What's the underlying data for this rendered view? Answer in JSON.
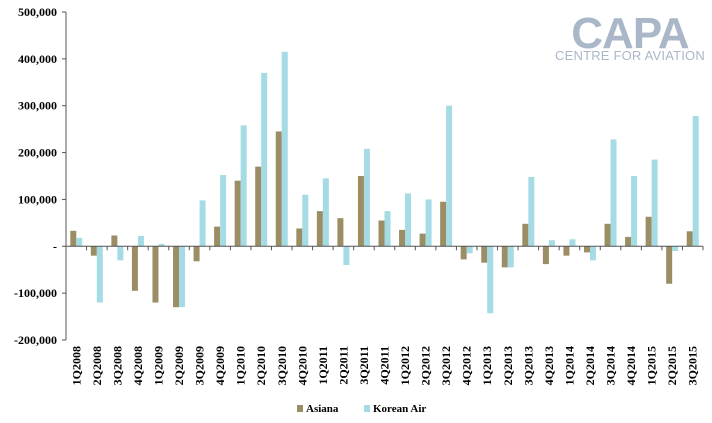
{
  "logo": {
    "main": "CAPA",
    "sub": "CENTRE FOR AVIATION"
  },
  "colors": {
    "asiana": "#9b8d64",
    "korean_air": "#a5dbe4",
    "axis": "#555555",
    "logo": "#aab7c9"
  },
  "chart_data": {
    "type": "bar",
    "title": "",
    "xlabel": "",
    "ylabel": "",
    "ylim": [
      -200000,
      500000
    ],
    "yticks": [
      500000,
      400000,
      300000,
      200000,
      100000,
      0,
      -100000,
      -200000
    ],
    "ytick_labels": [
      "500,000",
      "400,000",
      "300,000",
      "200,000",
      "100,000",
      "-",
      "-100,000",
      "-200,000"
    ],
    "grid": false,
    "legend_position": "bottom",
    "categories": [
      "1Q2008",
      "2Q2008",
      "3Q2008",
      "4Q2008",
      "1Q2009",
      "2Q2009",
      "3Q2009",
      "4Q2009",
      "1Q2010",
      "2Q2010",
      "3Q2010",
      "4Q2010",
      "1Q2011",
      "2Q2011",
      "3Q2011",
      "4Q2011",
      "1Q2012",
      "2Q2012",
      "3Q2012",
      "4Q2012",
      "1Q2013",
      "2Q2013",
      "3Q2013",
      "4Q2013",
      "1Q2014",
      "2Q2014",
      "3Q2014",
      "4Q2014",
      "1Q2015",
      "2Q2015",
      "3Q2015"
    ],
    "series": [
      {
        "name": "Asiana",
        "values": [
          33000,
          -20000,
          23000,
          -95000,
          -120000,
          -130000,
          -32000,
          42000,
          140000,
          170000,
          245000,
          38000,
          75000,
          60000,
          150000,
          55000,
          35000,
          27000,
          95000,
          -28000,
          -35000,
          -45000,
          48000,
          -38000,
          -20000,
          -13000,
          48000,
          20000,
          63000,
          -80000,
          32000
        ]
      },
      {
        "name": "Korean Air",
        "values": [
          18000,
          -120000,
          -30000,
          22000,
          5000,
          -130000,
          98000,
          152000,
          258000,
          370000,
          415000,
          110000,
          145000,
          -40000,
          208000,
          75000,
          113000,
          100000,
          300000,
          -15000,
          -143000,
          -45000,
          148000,
          13000,
          15000,
          -30000,
          228000,
          150000,
          185000,
          -10000,
          278000
        ]
      }
    ]
  }
}
